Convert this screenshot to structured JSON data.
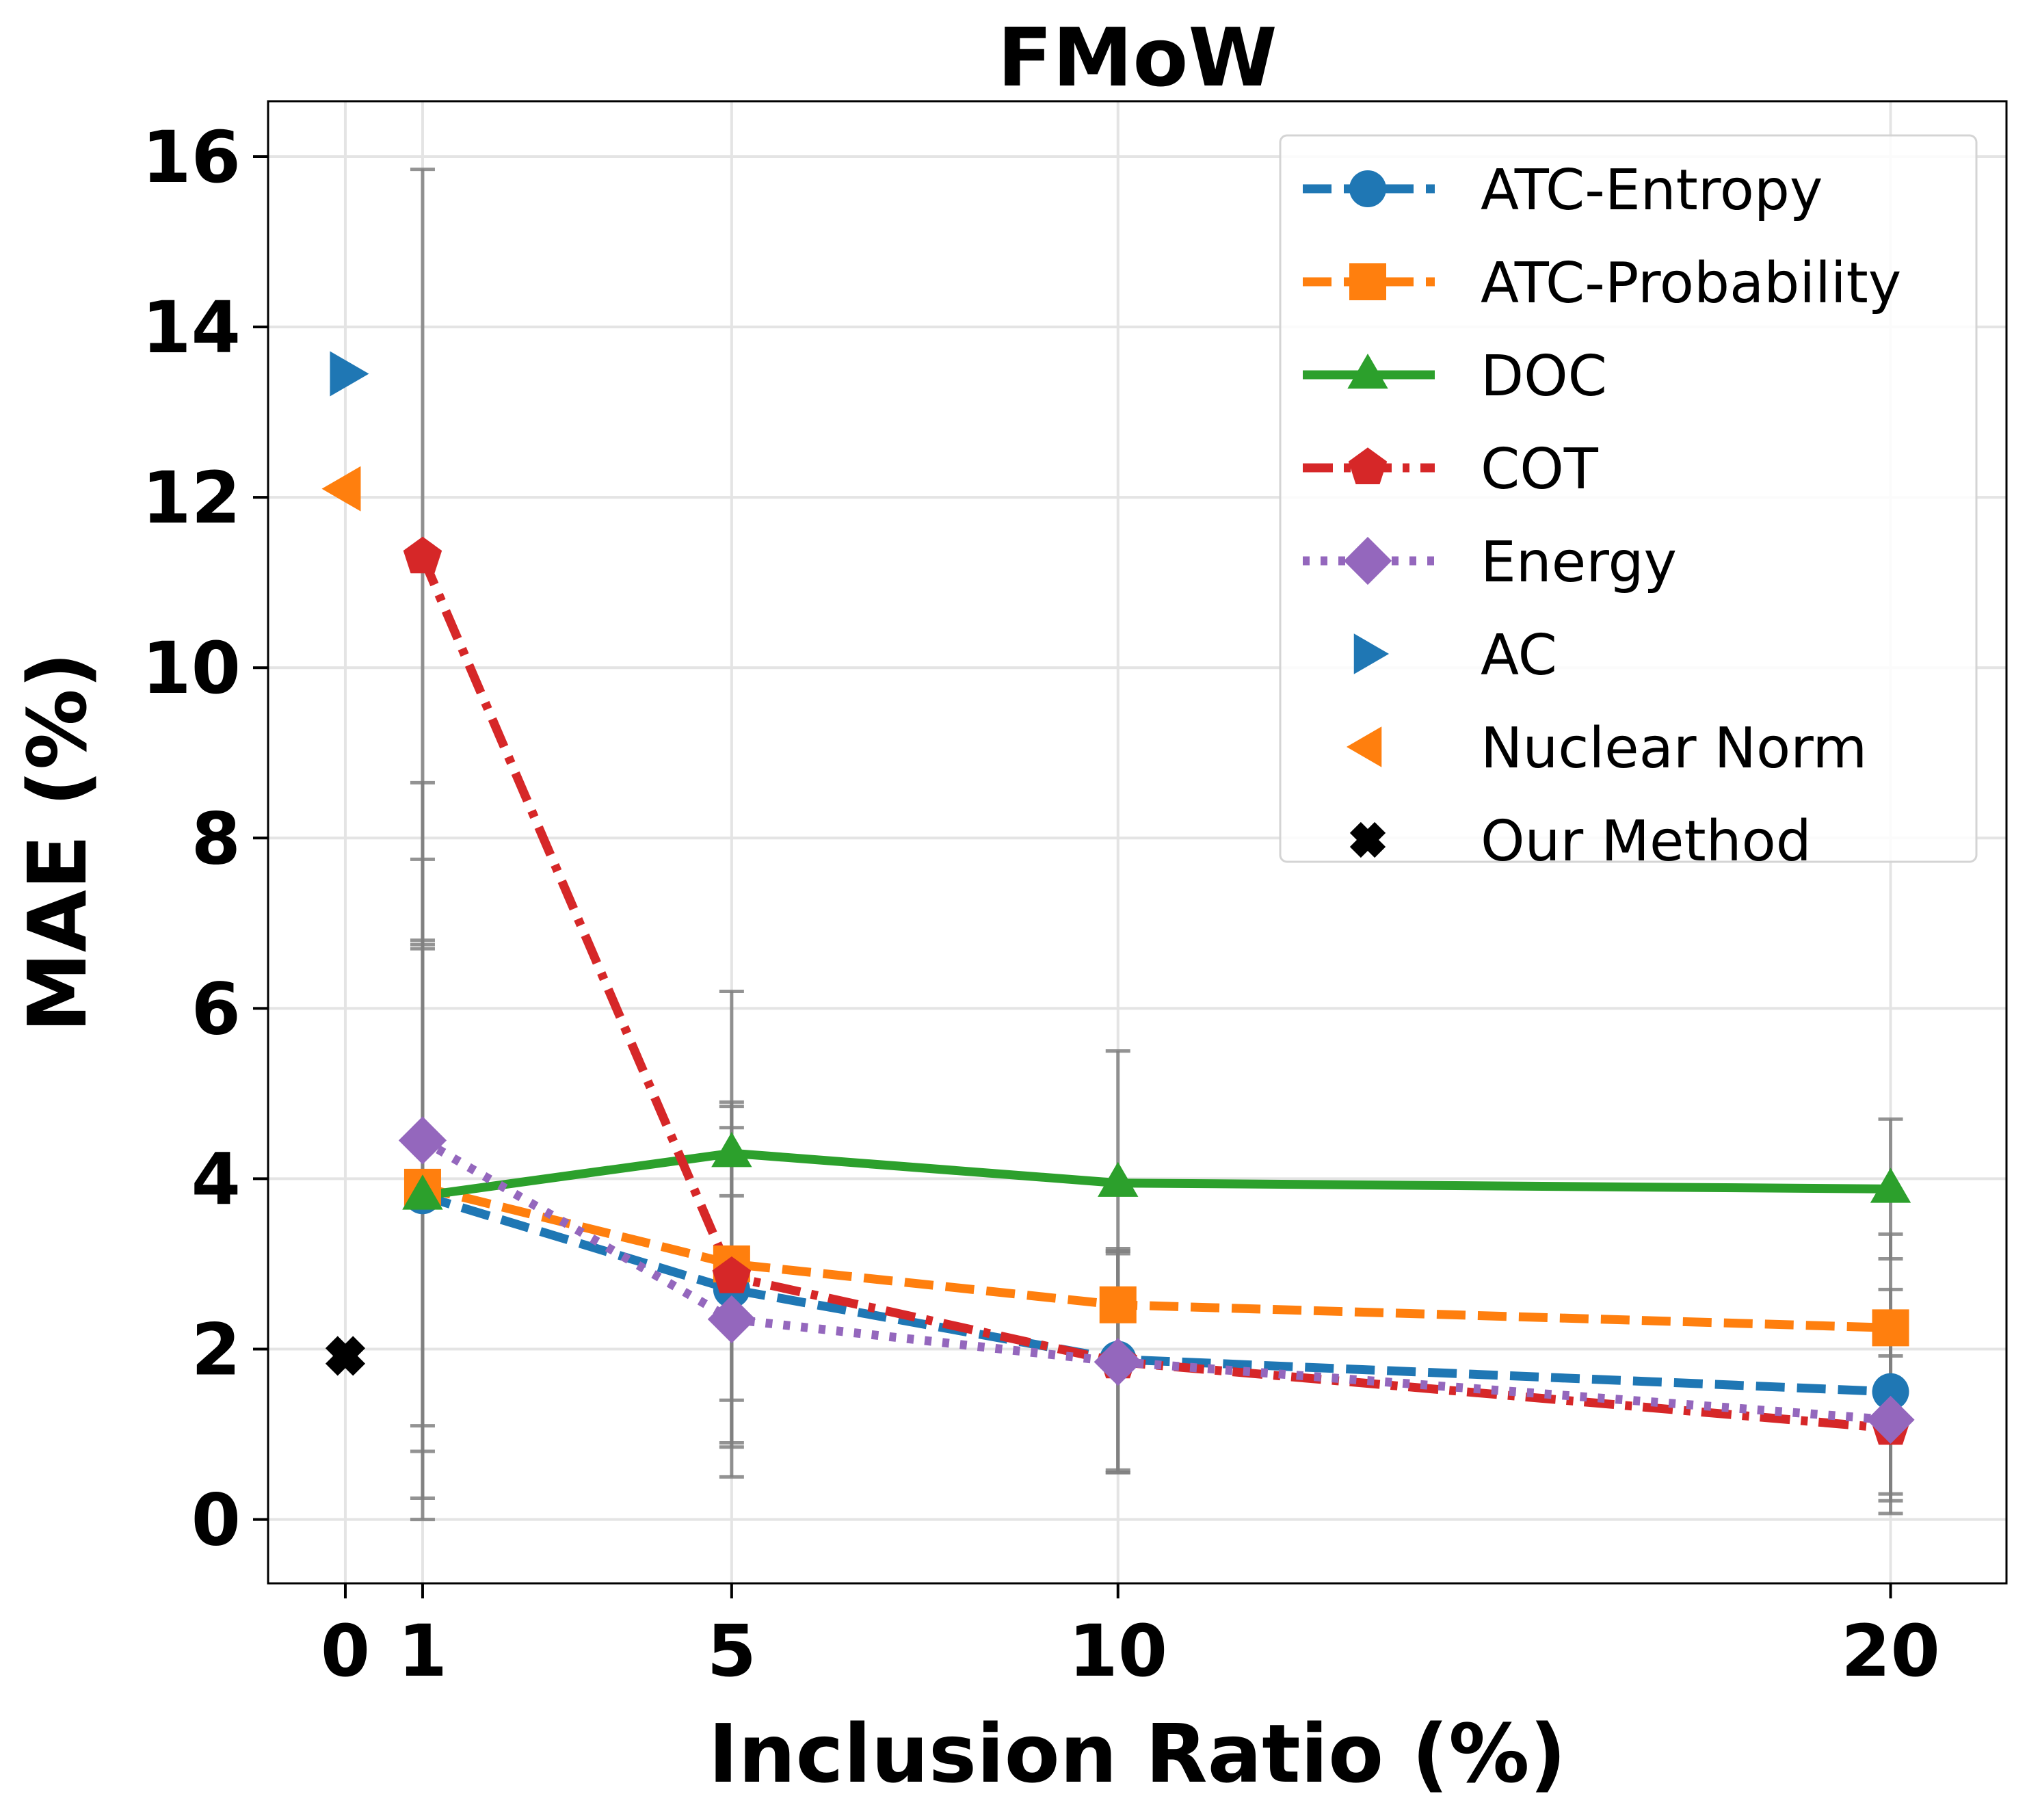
{
  "chart_data": {
    "type": "line",
    "title": "FMoW",
    "xlabel": "Inclusion Ratio (%)",
    "ylabel": "MAE (%)",
    "xlim": [
      -1,
      21.5
    ],
    "ylim": [
      -0.75,
      16.65
    ],
    "xticks": [
      0,
      1,
      5,
      10,
      20
    ],
    "xtick_labels": [
      "0",
      "1",
      "5",
      "10",
      "20"
    ],
    "yticks": [
      0,
      2,
      4,
      6,
      8,
      10,
      12,
      14,
      16
    ],
    "ytick_labels": [
      "0",
      "2",
      "4",
      "6",
      "8",
      "10",
      "12",
      "14",
      "16"
    ],
    "grid": true,
    "legend_position": "top-right",
    "x": [
      1,
      5,
      10,
      20
    ],
    "series": [
      {
        "name": "ATC-Entropy",
        "color": "#1f77b4",
        "linestyle": "dashed",
        "marker": "circle",
        "values": [
          3.8,
          2.7,
          1.88,
          1.5
        ],
        "err": [
          3.0,
          2.2,
          1.3,
          1.2
        ]
      },
      {
        "name": "ATC-Probability",
        "color": "#ff7f0e",
        "linestyle": "dashed",
        "marker": "square",
        "values": [
          3.9,
          3.0,
          2.52,
          2.25
        ],
        "err": [
          2.8,
          1.6,
          0.6,
          1.1
        ]
      },
      {
        "name": "DOC",
        "color": "#2ca02c",
        "linestyle": "solid",
        "marker": "triangle-up",
        "values": [
          3.8,
          4.3,
          3.95,
          3.88
        ],
        "err": [
          3.95,
          1.9,
          1.55,
          0.82
        ]
      },
      {
        "name": "COT",
        "color": "#d62728",
        "linestyle": "dashdot",
        "marker": "pentagon",
        "values": [
          11.3,
          2.85,
          1.85,
          1.07
        ],
        "err": [
          4.55,
          2.0,
          1.3,
          0.85
        ]
      },
      {
        "name": "Energy",
        "color": "#9467bd",
        "linestyle": "dotted",
        "marker": "diamond",
        "values": [
          4.45,
          2.35,
          1.85,
          1.17
        ],
        "err": [
          4.2,
          1.45,
          1.3,
          1.1
        ]
      }
    ],
    "single_points": [
      {
        "name": "AC",
        "color": "#1f77b4",
        "marker": "triangle-right",
        "x": 0,
        "y": 13.45
      },
      {
        "name": "Nuclear Norm",
        "color": "#ff7f0e",
        "marker": "triangle-left",
        "x": 0,
        "y": 12.1
      },
      {
        "name": "Our Method",
        "color": "#000000",
        "marker": "x",
        "x": 0,
        "y": 1.92
      }
    ],
    "errorbar_color": "#808080"
  }
}
